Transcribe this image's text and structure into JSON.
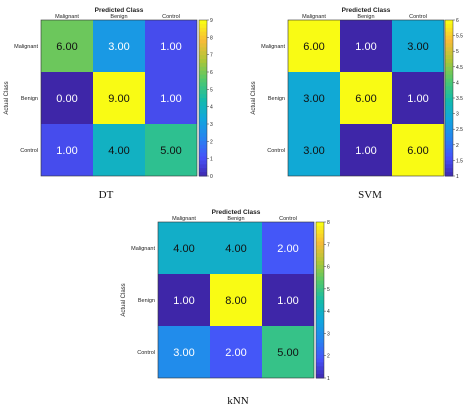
{
  "chart_data": [
    {
      "type": "heatmap",
      "caption": "DT",
      "title": "Predicted Class",
      "xlabel": "",
      "ylabel": "Actual Class",
      "categories": [
        "Malignant",
        "Benign",
        "Control"
      ],
      "values": [
        [
          6,
          3,
          1
        ],
        [
          0,
          9,
          1
        ],
        [
          1,
          4,
          5
        ]
      ],
      "value_labels": [
        [
          "6.00",
          "3.00",
          "1.00"
        ],
        [
          "0.00",
          "9.00",
          "1.00"
        ],
        [
          "1.00",
          "4.00",
          "5.00"
        ]
      ],
      "colorbar": {
        "min": 0,
        "max": 9,
        "ticks": [
          "0",
          "1",
          "2",
          "3",
          "4",
          "5",
          "6",
          "7",
          "8",
          "9"
        ]
      }
    },
    {
      "type": "heatmap",
      "caption": "SVM",
      "title": "Predicted Class",
      "xlabel": "",
      "ylabel": "Actual Class",
      "categories": [
        "Malignant",
        "Benign",
        "Control"
      ],
      "values": [
        [
          6,
          1,
          3
        ],
        [
          3,
          6,
          1
        ],
        [
          3,
          1,
          6
        ]
      ],
      "value_labels": [
        [
          "6.00",
          "1.00",
          "3.00"
        ],
        [
          "3.00",
          "6.00",
          "1.00"
        ],
        [
          "3.00",
          "1.00",
          "6.00"
        ]
      ],
      "colorbar": {
        "min": 1,
        "max": 6,
        "ticks": [
          "1",
          "1.5",
          "2",
          "2.5",
          "3",
          "3.5",
          "4",
          "4.5",
          "5",
          "5.5",
          "6"
        ]
      }
    },
    {
      "type": "heatmap",
      "caption": "kNN",
      "title": "Predicted Class",
      "xlabel": "",
      "ylabel": "Actual Class",
      "categories": [
        "Malignant",
        "Benign",
        "Control"
      ],
      "values": [
        [
          4,
          4,
          2
        ],
        [
          1,
          8,
          1
        ],
        [
          3,
          2,
          5
        ]
      ],
      "value_labels": [
        [
          "4.00",
          "4.00",
          "2.00"
        ],
        [
          "1.00",
          "8.00",
          "1.00"
        ],
        [
          "3.00",
          "2.00",
          "5.00"
        ]
      ],
      "colorbar": {
        "min": 1,
        "max": 8,
        "ticks": [
          "1",
          "2",
          "3",
          "4",
          "5",
          "6",
          "7",
          "8"
        ]
      }
    }
  ]
}
